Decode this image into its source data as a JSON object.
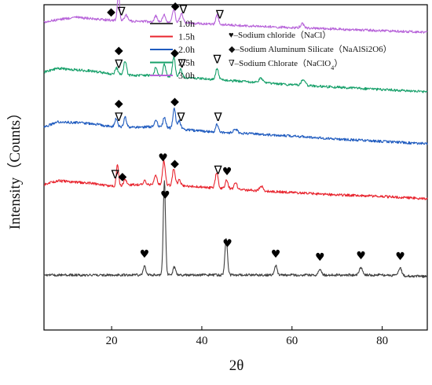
{
  "chart_data": {
    "type": "line",
    "title": "",
    "xlabel": "2θ",
    "ylabel": "Intensity（Counts）",
    "xlim": [
      5,
      90
    ],
    "xticks": [
      20,
      40,
      60,
      80
    ],
    "yticks_shown": false,
    "grid": false,
    "legend_position": "top-center",
    "series": [
      {
        "name": "1.0h",
        "color": "#404040",
        "offset": 0,
        "baseline": [
          [
            5,
            10
          ],
          [
            20,
            10
          ],
          [
            40,
            10
          ],
          [
            60,
            10
          ],
          [
            80,
            10
          ],
          [
            90,
            8
          ]
        ],
        "peaks": [
          [
            27.3,
            12,
            0.25
          ],
          [
            31.7,
            120,
            0.25
          ],
          [
            33.9,
            10,
            0.3
          ],
          [
            45.4,
            45,
            0.28
          ],
          [
            56.4,
            12,
            0.3
          ],
          [
            66.2,
            8,
            0.35
          ],
          [
            75.3,
            10,
            0.35
          ],
          [
            84.0,
            10,
            0.35
          ]
        ]
      },
      {
        "name": "1.5h",
        "color": "#e8242e",
        "offset": 115,
        "baseline": [
          [
            5,
            10
          ],
          [
            8,
            15
          ],
          [
            15,
            12
          ],
          [
            20,
            8
          ],
          [
            25,
            10
          ],
          [
            30,
            10
          ],
          [
            40,
            7
          ],
          [
            50,
            3
          ],
          [
            60,
            0
          ],
          [
            70,
            -3
          ],
          [
            80,
            -5
          ],
          [
            90,
            -8
          ]
        ],
        "peaks": [
          [
            21.3,
            28,
            0.25
          ],
          [
            23.0,
            8,
            0.3
          ],
          [
            27.3,
            5,
            0.25
          ],
          [
            29.8,
            12,
            0.3
          ],
          [
            31.6,
            30,
            0.3
          ],
          [
            33.8,
            22,
            0.3
          ],
          [
            35.0,
            8,
            0.3
          ],
          [
            43.3,
            20,
            0.3
          ],
          [
            45.5,
            12,
            0.3
          ],
          [
            47.5,
            8,
            0.35
          ],
          [
            53.2,
            6,
            0.4
          ]
        ]
      },
      {
        "name": "2.0h",
        "color": "#1f5bbf",
        "offset": 193,
        "baseline": [
          [
            5,
            5
          ],
          [
            8,
            12
          ],
          [
            15,
            10
          ],
          [
            20,
            6
          ],
          [
            25,
            5
          ],
          [
            30,
            6
          ],
          [
            40,
            0
          ],
          [
            50,
            -3
          ],
          [
            60,
            -6
          ],
          [
            70,
            -10
          ],
          [
            80,
            -13
          ],
          [
            90,
            -16
          ]
        ],
        "peaks": [
          [
            21.0,
            10,
            0.3
          ],
          [
            23.0,
            12,
            0.3
          ],
          [
            29.8,
            8,
            0.3
          ],
          [
            31.7,
            12,
            0.3
          ],
          [
            33.9,
            25,
            0.3
          ],
          [
            35.0,
            10,
            0.3
          ],
          [
            43.4,
            10,
            0.3
          ],
          [
            47.5,
            5,
            0.4
          ]
        ]
      },
      {
        "name": "2.5h",
        "color": "#17a06a",
        "offset": 258,
        "baseline": [
          [
            5,
            10
          ],
          [
            8,
            15
          ],
          [
            15,
            12
          ],
          [
            20,
            8
          ],
          [
            25,
            6
          ],
          [
            30,
            6
          ],
          [
            40,
            2
          ],
          [
            50,
            -2
          ],
          [
            60,
            -6
          ],
          [
            70,
            -9
          ],
          [
            80,
            -12
          ],
          [
            90,
            -15
          ]
        ],
        "peaks": [
          [
            21.1,
            8,
            0.3
          ],
          [
            23.0,
            18,
            0.3
          ],
          [
            29.8,
            10,
            0.3
          ],
          [
            31.7,
            15,
            0.3
          ],
          [
            33.8,
            25,
            0.3
          ],
          [
            35.3,
            10,
            0.3
          ],
          [
            43.4,
            15,
            0.3
          ],
          [
            53.1,
            6,
            0.35
          ],
          [
            62.5,
            8,
            0.4
          ]
        ]
      },
      {
        "name": "3.0h",
        "color": "#b763d9",
        "offset": 335,
        "baseline": [
          [
            5,
            -3
          ],
          [
            8,
            0
          ],
          [
            12,
            3
          ],
          [
            18,
            0
          ],
          [
            25,
            -2
          ],
          [
            30,
            -3
          ],
          [
            40,
            -5
          ],
          [
            50,
            -8
          ],
          [
            60,
            -10
          ],
          [
            70,
            -12
          ],
          [
            80,
            -14
          ],
          [
            90,
            -16
          ]
        ],
        "peaks": [
          [
            21.5,
            35,
            0.25
          ],
          [
            23.2,
            8,
            0.3
          ],
          [
            29.8,
            8,
            0.3
          ],
          [
            31.6,
            10,
            0.3
          ],
          [
            33.8,
            18,
            0.3
          ],
          [
            35.5,
            12,
            0.35
          ],
          [
            43.4,
            12,
            0.3
          ],
          [
            62.3,
            5,
            0.4
          ]
        ]
      }
    ],
    "legend_key": [
      {
        "symbol": "♥",
        "label": "–Sodium chloride（NaCl）"
      },
      {
        "symbol": "◆",
        "label": "–Sodium Aluminum Silicate（NaAlSi2O6）"
      },
      {
        "symbol": "∇",
        "label": "–Sodium Chlorate（NaClO",
        "sub": "4",
        "tail": "）"
      }
    ],
    "annotations": [
      {
        "symbol": "♥",
        "x": 27.3,
        "series": 0,
        "gap": 10
      },
      {
        "symbol": "♥",
        "x": 31.9,
        "series": 0,
        "gap": 10
      },
      {
        "symbol": "♥",
        "x": 45.7,
        "series": 0,
        "gap": 10
      },
      {
        "symbol": "♥",
        "x": 56.4,
        "series": 0,
        "gap": 10
      },
      {
        "symbol": "♥",
        "x": 66.2,
        "series": 0,
        "gap": 10
      },
      {
        "symbol": "♥",
        "x": 75.3,
        "series": 0,
        "gap": 10
      },
      {
        "symbol": "♥",
        "x": 84.0,
        "series": 0,
        "gap": 10
      },
      {
        "symbol": "∇",
        "x": 20.8,
        "series": 1,
        "gap": 6
      },
      {
        "symbol": "◆",
        "x": 22.4,
        "series": 1,
        "gap": 6
      },
      {
        "symbol": "♥",
        "x": 31.4,
        "series": 1,
        "gap": 6
      },
      {
        "symbol": "◆",
        "x": 34.0,
        "series": 1,
        "gap": 6
      },
      {
        "symbol": "∇",
        "x": 43.6,
        "series": 1,
        "gap": 6
      },
      {
        "symbol": "♥",
        "x": 45.6,
        "series": 1,
        "gap": 6
      },
      {
        "symbol": "◆",
        "x": 21.6,
        "series": 2,
        "gap": 24
      },
      {
        "symbol": "∇",
        "x": 21.6,
        "series": 2,
        "gap": 6
      },
      {
        "symbol": "◆",
        "x": 34.0,
        "series": 2,
        "gap": 6
      },
      {
        "symbol": "∇",
        "x": 35.4,
        "series": 2,
        "gap": 6
      },
      {
        "symbol": "∇",
        "x": 43.6,
        "series": 2,
        "gap": 6
      },
      {
        "symbol": "◆",
        "x": 21.6,
        "series": 3,
        "gap": 24
      },
      {
        "symbol": "∇",
        "x": 21.6,
        "series": 3,
        "gap": 6
      },
      {
        "symbol": "◆",
        "x": 34.0,
        "series": 3,
        "gap": 6
      },
      {
        "symbol": "∇",
        "x": 35.6,
        "series": 3,
        "gap": 6
      },
      {
        "symbol": "∇",
        "x": 43.4,
        "series": 3,
        "gap": 6
      },
      {
        "symbol": "◆",
        "x": 19.9,
        "series": 4,
        "gap": 6
      },
      {
        "symbol": "∇",
        "x": 22.2,
        "series": 4,
        "gap": 6
      },
      {
        "symbol": "◆",
        "x": 34.1,
        "series": 4,
        "gap": 6
      },
      {
        "symbol": "∇",
        "x": 35.9,
        "series": 4,
        "gap": 6
      },
      {
        "symbol": "∇",
        "x": 44.0,
        "series": 4,
        "gap": 6
      }
    ]
  }
}
